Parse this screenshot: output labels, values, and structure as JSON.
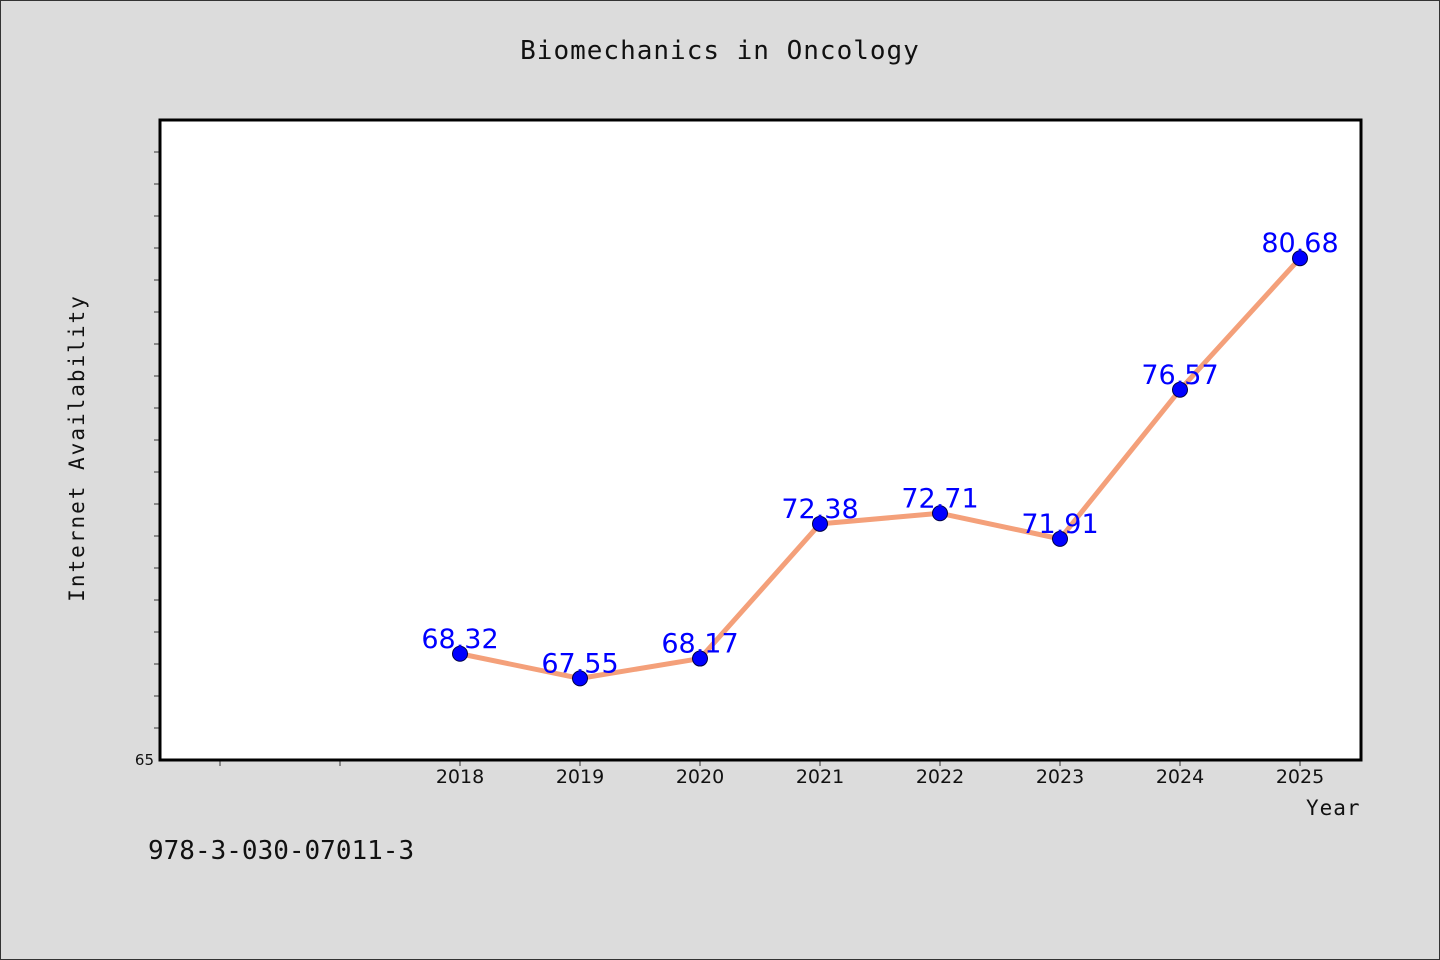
{
  "chart_data": {
    "type": "line",
    "title": "Biomechanics in Oncology",
    "xlabel": "Year",
    "ylabel": "Internet Availability",
    "categories": [
      "2018",
      "2019",
      "2020",
      "2021",
      "2022",
      "2023",
      "2024",
      "2025"
    ],
    "series": [
      {
        "values": [
          68.32,
          67.55,
          68.17,
          72.38,
          72.71,
          71.91,
          76.57,
          80.68
        ]
      }
    ],
    "data_labels": [
      "68.32",
      "67.55",
      "68.17",
      "72.38",
      "72.71",
      "71.91",
      "76.57",
      "80.68"
    ],
    "y_tick_labels": [
      "65"
    ],
    "ylim": [
      65,
      85
    ],
    "grid": false,
    "line_color": "#f4a07a",
    "marker_color": "#0000ff",
    "label_color": "#0000ff"
  },
  "footer": {
    "identifier": "978-3-030-07011-3"
  }
}
